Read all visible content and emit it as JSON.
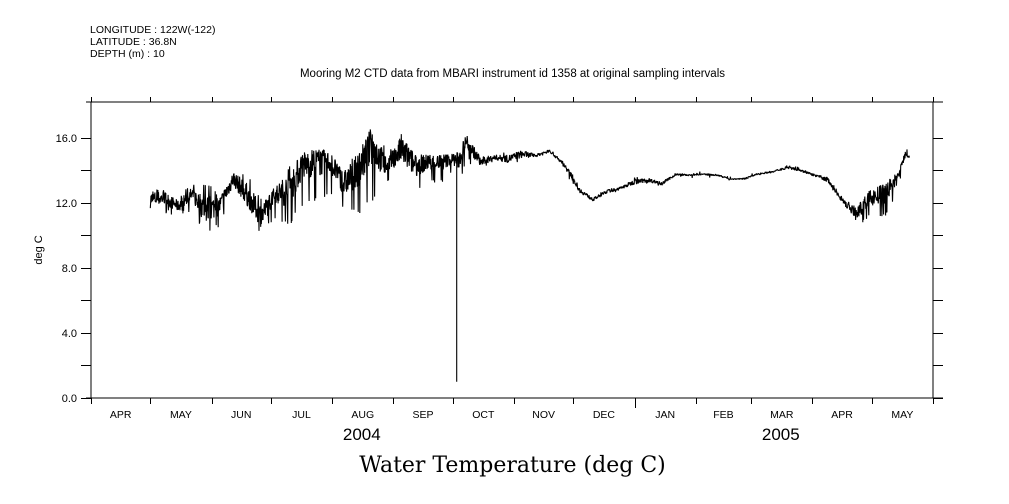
{
  "header": {
    "longitude": "LONGITUDE : 122W(-122)",
    "latitude": "LATITUDE : 36.8N",
    "depth": "DEPTH (m) : 10"
  },
  "chart_data": {
    "type": "line",
    "title": "Mooring M2 CTD data from MBARI instrument id 1358 at original sampling intervals",
    "footer_title": "Water Temperature (deg C)",
    "xlabel": "",
    "ylabel": "deg C",
    "xlim": [
      "2004-04-01",
      "2005-06-01"
    ],
    "ylim": [
      0,
      18.2
    ],
    "yticks": [
      0,
      2,
      4,
      6,
      8,
      10,
      12,
      14,
      16
    ],
    "ytick_labels": [
      "0.0",
      "4.0",
      "8.0",
      "12.0",
      "16.0"
    ],
    "month_ticks": [
      "2004-04-01",
      "2004-05-01",
      "2004-06-01",
      "2004-07-01",
      "2004-08-01",
      "2004-09-01",
      "2004-10-01",
      "2004-11-01",
      "2004-12-01",
      "2005-01-01",
      "2005-02-01",
      "2005-03-01",
      "2005-04-01",
      "2005-05-01",
      "2005-06-01"
    ],
    "month_labels": [
      "APR",
      "MAY",
      "JUN",
      "JUL",
      "AUG",
      "SEP",
      "OCT",
      "NOV",
      "DEC",
      "JAN",
      "FEB",
      "MAR",
      "APR",
      "MAY"
    ],
    "year_labels": [
      {
        "text": "2004",
        "center": "2004-08-16"
      },
      {
        "text": "2005",
        "center": "2005-03-16"
      }
    ],
    "grid": false,
    "line_color": "#000000",
    "series": [
      {
        "name": "Water Temperature",
        "fields": [
          "date",
          "mean",
          "min",
          "max"
        ],
        "values": [
          [
            "2004-05-01",
            12.2,
            11.0,
            12.9
          ],
          [
            "2004-05-08",
            12.3,
            11.3,
            12.9
          ],
          [
            "2004-05-15",
            11.8,
            11.2,
            12.5
          ],
          [
            "2004-05-22",
            12.5,
            11.5,
            13.2
          ],
          [
            "2004-05-29",
            11.6,
            10.0,
            13.3
          ],
          [
            "2004-06-05",
            11.8,
            10.5,
            12.6
          ],
          [
            "2004-06-12",
            13.5,
            12.5,
            14.2
          ],
          [
            "2004-06-19",
            12.5,
            11.2,
            13.8
          ],
          [
            "2004-06-26",
            11.2,
            9.8,
            12.4
          ],
          [
            "2004-07-03",
            12.5,
            11.0,
            12.9
          ],
          [
            "2004-07-10",
            12.8,
            10.5,
            14.3
          ],
          [
            "2004-07-17",
            14.3,
            11.8,
            15.0
          ],
          [
            "2004-07-24",
            14.5,
            12.0,
            15.3
          ],
          [
            "2004-07-31",
            14.5,
            12.5,
            15.0
          ],
          [
            "2004-08-07",
            13.2,
            11.5,
            14.3
          ],
          [
            "2004-08-14",
            14.0,
            11.2,
            15.0
          ],
          [
            "2004-08-21",
            15.5,
            12.0,
            16.5
          ],
          [
            "2004-08-28",
            14.3,
            13.0,
            15.5
          ],
          [
            "2004-09-02",
            14.8,
            13.5,
            15.5
          ],
          [
            "2004-09-05",
            15.3,
            13.8,
            17.3
          ],
          [
            "2004-09-12",
            14.3,
            12.5,
            15.0
          ],
          [
            "2004-09-19",
            14.5,
            13.2,
            15.0
          ],
          [
            "2004-09-26",
            14.5,
            13.2,
            15.2
          ],
          [
            "2004-09-30",
            14.7,
            13.8,
            15.0
          ],
          [
            "2004-10-04",
            14.6,
            13.0,
            15.0
          ],
          [
            "2004-10-08",
            15.8,
            14.5,
            16.3
          ],
          [
            "2004-10-15",
            14.5,
            14.0,
            15.1
          ],
          [
            "2004-10-22",
            14.8,
            14.5,
            15.1
          ],
          [
            "2004-10-29",
            14.7,
            14.3,
            15.2
          ],
          [
            "2004-11-05",
            15.0,
            14.4,
            15.3
          ],
          [
            "2004-11-12",
            14.9,
            14.7,
            15.1
          ],
          [
            "2004-11-19",
            15.2,
            15.1,
            15.4
          ],
          [
            "2004-11-26",
            14.4,
            14.1,
            14.6
          ],
          [
            "2004-12-01",
            13.5,
            13.0,
            13.7
          ],
          [
            "2004-12-04",
            12.8,
            12.4,
            13.0
          ],
          [
            "2004-12-11",
            12.2,
            12.0,
            12.4
          ],
          [
            "2004-12-18",
            12.7,
            12.5,
            12.9
          ],
          [
            "2004-12-25",
            12.9,
            12.7,
            13.1
          ],
          [
            "2005-01-01",
            13.3,
            13.0,
            13.6
          ],
          [
            "2005-01-08",
            13.4,
            13.1,
            13.6
          ],
          [
            "2005-01-15",
            13.2,
            13.0,
            13.4
          ],
          [
            "2005-01-22",
            13.75,
            13.6,
            13.85
          ],
          [
            "2005-01-29",
            13.7,
            13.6,
            13.8
          ],
          [
            "2005-02-05",
            13.75,
            13.65,
            13.85
          ],
          [
            "2005-02-12",
            13.7,
            13.6,
            13.8
          ],
          [
            "2005-02-19",
            13.45,
            13.4,
            13.55
          ],
          [
            "2005-02-26",
            13.5,
            13.4,
            13.6
          ],
          [
            "2005-03-05",
            13.8,
            13.7,
            13.9
          ],
          [
            "2005-03-12",
            13.9,
            13.8,
            14.0
          ],
          [
            "2005-03-19",
            14.2,
            14.0,
            14.4
          ],
          [
            "2005-03-26",
            14.0,
            13.9,
            14.2
          ],
          [
            "2005-04-02",
            13.7,
            13.5,
            13.8
          ],
          [
            "2005-04-09",
            13.4,
            13.0,
            13.6
          ],
          [
            "2005-04-16",
            12.2,
            11.8,
            12.5
          ],
          [
            "2005-04-23",
            11.3,
            10.4,
            11.8
          ],
          [
            "2005-04-30",
            12.3,
            11.2,
            13.0
          ],
          [
            "2005-05-07",
            12.5,
            11.0,
            13.5
          ],
          [
            "2005-05-14",
            13.5,
            12.5,
            14.0
          ],
          [
            "2005-05-18",
            15.0,
            14.7,
            15.4
          ],
          [
            "2005-05-20",
            14.9,
            14.7,
            15.2
          ]
        ],
        "outliers": [
          [
            "2004-10-03",
            1.0
          ]
        ]
      }
    ]
  }
}
